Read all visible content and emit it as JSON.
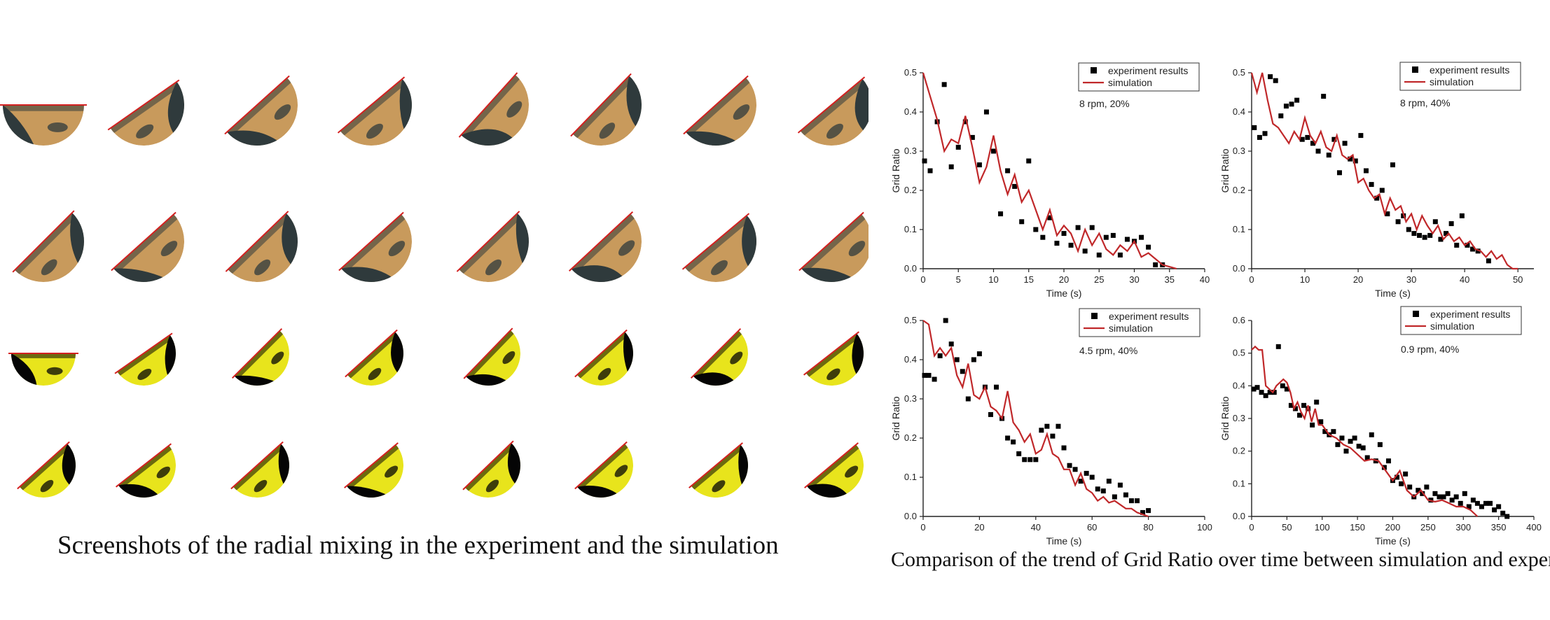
{
  "figure": {
    "left_caption": "Screenshots of the radial mixing in the experiment and the simulation",
    "right_caption": "Comparison of the trend of Grid Ratio over time between simulation and experiment"
  },
  "snapshots": {
    "rows": [
      {
        "kind": "experiment",
        "colors": {
          "bed": "#c89a5c",
          "mix": "#2f3a3c",
          "line": "#d42020"
        }
      },
      {
        "kind": "experiment",
        "colors": {
          "bed": "#c89a5c",
          "mix": "#2f3a3c",
          "line": "#d42020"
        }
      },
      {
        "kind": "simulation",
        "colors": {
          "bed": "#e8e41c",
          "mix": "#050505",
          "line": "#d42020"
        }
      },
      {
        "kind": "simulation",
        "colors": {
          "bed": "#e8e41c",
          "mix": "#050505",
          "line": "#d42020"
        }
      }
    ],
    "per_row": 8
  },
  "legend": {
    "experiment": "experiment results",
    "simulation": "simulation"
  },
  "colors": {
    "experiment": "#000000",
    "simulation": "#c0282a",
    "axis": "#222222"
  },
  "chart_data": [
    {
      "type": "scatter+line",
      "condition": "8 rpm, 20%",
      "xlabel": "Time (s)",
      "ylabel": "Grid Ratio",
      "xlim": [
        0,
        40
      ],
      "ylim": [
        0,
        0.5
      ],
      "xticks": [
        0,
        5,
        10,
        15,
        20,
        25,
        30,
        35,
        40
      ],
      "yticks": [
        0.0,
        0.1,
        0.2,
        0.3,
        0.4,
        0.5
      ],
      "series": [
        {
          "name": "experiment results",
          "kind": "scatter",
          "x": [
            0.2,
            1,
            2,
            3,
            4,
            5,
            6,
            7,
            8,
            9,
            10,
            11,
            12,
            13,
            14,
            15,
            16,
            17,
            18,
            19,
            20,
            21,
            22,
            23,
            24,
            25,
            26,
            27,
            28,
            29,
            30,
            31,
            32,
            33,
            34
          ],
          "y": [
            0.275,
            0.25,
            0.375,
            0.47,
            0.26,
            0.31,
            0.375,
            0.335,
            0.265,
            0.4,
            0.3,
            0.14,
            0.25,
            0.21,
            0.12,
            0.275,
            0.1,
            0.08,
            0.13,
            0.065,
            0.09,
            0.06,
            0.105,
            0.045,
            0.105,
            0.035,
            0.08,
            0.085,
            0.035,
            0.075,
            0.07,
            0.08,
            0.055,
            0.01,
            0.01
          ]
        },
        {
          "name": "simulation",
          "kind": "line",
          "x": [
            0,
            1,
            2,
            3,
            4,
            5,
            6,
            7,
            8,
            9,
            10,
            11,
            12,
            13,
            14,
            15,
            16,
            17,
            18,
            19,
            20,
            21,
            22,
            23,
            24,
            25,
            26,
            27,
            28,
            29,
            30,
            31,
            32,
            33,
            34,
            35,
            36
          ],
          "y": [
            0.5,
            0.44,
            0.38,
            0.3,
            0.33,
            0.32,
            0.39,
            0.31,
            0.22,
            0.26,
            0.34,
            0.25,
            0.19,
            0.24,
            0.17,
            0.2,
            0.15,
            0.1,
            0.15,
            0.085,
            0.11,
            0.09,
            0.045,
            0.1,
            0.06,
            0.09,
            0.05,
            0.035,
            0.06,
            0.045,
            0.07,
            0.03,
            0.04,
            0.025,
            0.01,
            0.005,
            0.0
          ]
        }
      ]
    },
    {
      "type": "scatter+line",
      "condition": "8 rpm, 40%",
      "xlabel": "Time (s)",
      "ylabel": "Grid Ratio",
      "xlim": [
        0,
        53
      ],
      "ylim": [
        0,
        0.5
      ],
      "xticks": [
        0,
        10,
        20,
        30,
        40,
        50
      ],
      "yticks": [
        0.0,
        0.1,
        0.2,
        0.3,
        0.4,
        0.5
      ],
      "series": [
        {
          "name": "experiment results",
          "kind": "scatter",
          "x": [
            0.5,
            1.5,
            2.5,
            3.5,
            4.5,
            5.5,
            6.5,
            7.5,
            8.5,
            9.5,
            10.5,
            11.5,
            12.5,
            13.5,
            14.5,
            15.5,
            16.5,
            17.5,
            18.5,
            19.5,
            20.5,
            21.5,
            22.5,
            23.5,
            24.5,
            25.5,
            26.5,
            27.5,
            28.5,
            29.5,
            30.5,
            31.5,
            32.5,
            33.5,
            34.5,
            35.5,
            36.5,
            37.5,
            38.5,
            39.5,
            40.5,
            41.5,
            42.5,
            44.5
          ],
          "y": [
            0.36,
            0.335,
            0.345,
            0.49,
            0.48,
            0.39,
            0.415,
            0.42,
            0.43,
            0.33,
            0.335,
            0.32,
            0.3,
            0.44,
            0.29,
            0.33,
            0.245,
            0.32,
            0.28,
            0.275,
            0.34,
            0.25,
            0.215,
            0.18,
            0.2,
            0.14,
            0.265,
            0.12,
            0.135,
            0.1,
            0.09,
            0.085,
            0.08,
            0.085,
            0.12,
            0.075,
            0.09,
            0.115,
            0.06,
            0.135,
            0.06,
            0.05,
            0.045,
            0.02
          ]
        },
        {
          "name": "simulation",
          "kind": "line",
          "x": [
            0,
            1,
            2,
            3,
            4,
            5,
            6,
            7,
            8,
            9,
            10,
            11,
            12,
            13,
            14,
            15,
            16,
            17,
            18,
            19,
            20,
            21,
            22,
            23,
            24,
            25,
            26,
            27,
            28,
            29,
            30,
            31,
            32,
            33,
            34,
            35,
            36,
            37,
            38,
            39,
            40,
            41,
            42,
            43,
            44,
            45,
            46,
            47,
            48,
            49,
            50
          ],
          "y": [
            0.5,
            0.45,
            0.5,
            0.43,
            0.37,
            0.36,
            0.34,
            0.32,
            0.35,
            0.33,
            0.385,
            0.34,
            0.32,
            0.35,
            0.31,
            0.3,
            0.34,
            0.29,
            0.28,
            0.29,
            0.22,
            0.23,
            0.2,
            0.18,
            0.19,
            0.14,
            0.18,
            0.15,
            0.16,
            0.12,
            0.14,
            0.1,
            0.135,
            0.11,
            0.09,
            0.11,
            0.075,
            0.09,
            0.07,
            0.08,
            0.06,
            0.07,
            0.05,
            0.045,
            0.03,
            0.045,
            0.025,
            0.035,
            0.01,
            0.0,
            0.0
          ]
        }
      ]
    },
    {
      "type": "scatter+line",
      "condition": "4.5 rpm, 40%",
      "xlabel": "Time (s)",
      "ylabel": "Grid Ratio",
      "xlim": [
        0,
        100
      ],
      "ylim": [
        0,
        0.5
      ],
      "xticks": [
        0,
        20,
        40,
        60,
        80,
        100
      ],
      "yticks": [
        0.0,
        0.1,
        0.2,
        0.3,
        0.4,
        0.5
      ],
      "series": [
        {
          "name": "experiment results",
          "kind": "scatter",
          "x": [
            0.5,
            2,
            4,
            6,
            8,
            10,
            12,
            14,
            16,
            18,
            20,
            22,
            24,
            26,
            28,
            30,
            32,
            34,
            36,
            38,
            40,
            42,
            44,
            46,
            48,
            50,
            52,
            54,
            56,
            58,
            60,
            62,
            64,
            66,
            68,
            70,
            72,
            74,
            76,
            78,
            80
          ],
          "y": [
            0.36,
            0.36,
            0.35,
            0.41,
            0.5,
            0.44,
            0.4,
            0.37,
            0.3,
            0.4,
            0.415,
            0.33,
            0.26,
            0.33,
            0.25,
            0.2,
            0.19,
            0.16,
            0.145,
            0.145,
            0.145,
            0.22,
            0.23,
            0.205,
            0.23,
            0.175,
            0.13,
            0.12,
            0.09,
            0.11,
            0.1,
            0.07,
            0.065,
            0.09,
            0.05,
            0.08,
            0.055,
            0.04,
            0.04,
            0.01,
            0.015
          ]
        },
        {
          "name": "simulation",
          "kind": "line",
          "x": [
            0,
            2,
            4,
            6,
            8,
            10,
            12,
            14,
            16,
            18,
            20,
            22,
            24,
            26,
            28,
            30,
            32,
            34,
            36,
            38,
            40,
            42,
            44,
            46,
            48,
            50,
            52,
            54,
            56,
            58,
            60,
            62,
            64,
            66,
            68,
            70,
            72,
            74,
            76,
            78,
            80
          ],
          "y": [
            0.5,
            0.49,
            0.41,
            0.43,
            0.41,
            0.43,
            0.36,
            0.33,
            0.39,
            0.31,
            0.3,
            0.33,
            0.28,
            0.27,
            0.25,
            0.32,
            0.24,
            0.22,
            0.19,
            0.21,
            0.16,
            0.17,
            0.21,
            0.16,
            0.15,
            0.12,
            0.12,
            0.08,
            0.11,
            0.07,
            0.06,
            0.04,
            0.05,
            0.035,
            0.04,
            0.03,
            0.02,
            0.02,
            0.01,
            0.005,
            0.0
          ]
        }
      ]
    },
    {
      "type": "scatter+line",
      "condition": "0.9 rpm, 40%",
      "xlabel": "Time (s)",
      "ylabel": "Grid Ratio",
      "xlim": [
        0,
        400
      ],
      "ylim": [
        0,
        0.6
      ],
      "xticks": [
        0,
        50,
        100,
        150,
        200,
        250,
        300,
        350,
        400
      ],
      "yticks": [
        0.0,
        0.1,
        0.2,
        0.3,
        0.4,
        0.5,
        0.6
      ],
      "series": [
        {
          "name": "experiment results",
          "kind": "scatter",
          "x": [
            3,
            8,
            14,
            20,
            26,
            32,
            38,
            44,
            50,
            56,
            62,
            68,
            74,
            80,
            86,
            92,
            98,
            104,
            110,
            116,
            122,
            128,
            134,
            140,
            146,
            152,
            158,
            164,
            170,
            176,
            182,
            188,
            194,
            200,
            206,
            212,
            218,
            224,
            230,
            236,
            242,
            248,
            254,
            260,
            266,
            272,
            278,
            284,
            290,
            296,
            302,
            308,
            314,
            320,
            326,
            332,
            338,
            344,
            350,
            356,
            362
          ],
          "y": [
            0.39,
            0.395,
            0.38,
            0.37,
            0.38,
            0.38,
            0.52,
            0.4,
            0.39,
            0.34,
            0.33,
            0.31,
            0.34,
            0.33,
            0.28,
            0.35,
            0.29,
            0.26,
            0.25,
            0.26,
            0.22,
            0.24,
            0.2,
            0.23,
            0.24,
            0.215,
            0.21,
            0.18,
            0.25,
            0.17,
            0.22,
            0.15,
            0.17,
            0.11,
            0.12,
            0.1,
            0.13,
            0.09,
            0.06,
            0.08,
            0.07,
            0.09,
            0.05,
            0.07,
            0.06,
            0.06,
            0.07,
            0.05,
            0.06,
            0.04,
            0.07,
            0.03,
            0.05,
            0.04,
            0.03,
            0.04,
            0.04,
            0.02,
            0.03,
            0.01,
            0.0
          ]
        },
        {
          "name": "simulation",
          "kind": "line",
          "x": [
            0,
            5,
            10,
            15,
            20,
            25,
            30,
            35,
            40,
            45,
            50,
            55,
            60,
            65,
            70,
            75,
            80,
            85,
            90,
            95,
            100,
            110,
            120,
            130,
            140,
            150,
            160,
            170,
            180,
            190,
            200,
            210,
            220,
            230,
            240,
            250,
            260,
            270,
            280,
            290,
            300,
            310,
            320
          ],
          "y": [
            0.51,
            0.52,
            0.51,
            0.51,
            0.4,
            0.39,
            0.38,
            0.4,
            0.41,
            0.42,
            0.41,
            0.38,
            0.33,
            0.35,
            0.32,
            0.3,
            0.34,
            0.29,
            0.33,
            0.28,
            0.28,
            0.25,
            0.24,
            0.22,
            0.21,
            0.19,
            0.17,
            0.175,
            0.17,
            0.14,
            0.11,
            0.14,
            0.08,
            0.06,
            0.08,
            0.05,
            0.045,
            0.05,
            0.04,
            0.03,
            0.03,
            0.02,
            0.0
          ]
        }
      ]
    }
  ]
}
